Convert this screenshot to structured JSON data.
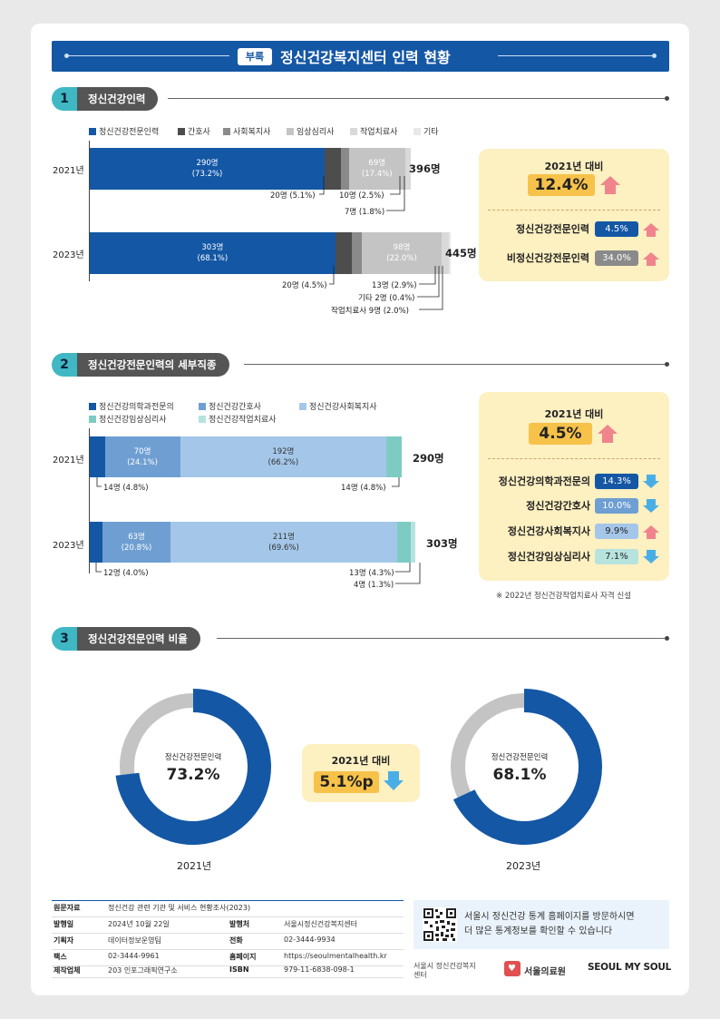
{
  "header": {
    "badge": "부록",
    "title": "정신건강복지센터 인력 현황"
  },
  "sections": [
    {
      "num": "1",
      "title": "정신건강인력"
    },
    {
      "num": "2",
      "title": "정신건강전문인력의 세부직종"
    },
    {
      "num": "3",
      "title": "정신건강전문인력 비율"
    }
  ],
  "colors": {
    "blue": "#1457a5",
    "dark_gray": "#4d4d4d",
    "gray": "#8a8a8a",
    "light_gray": "#c4c4c4",
    "lighter_gray": "#d9d9d9",
    "lightest_gray": "#e8e8e8",
    "mid_blue": "#6f9fd2",
    "light_blue": "#a4c7e9",
    "teal": "#7ecbc4",
    "light_teal": "#b7e3de",
    "up_arrow": "#f0848c",
    "down_arrow": "#4aaee6",
    "panel_bg": "#fdf0c1",
    "highlight": "#f7c24a"
  },
  "chart_data": [
    {
      "type": "bar",
      "orientation": "horizontal",
      "stacked": true,
      "categories": [
        "2021년",
        "2023년"
      ],
      "legend": [
        "정신건강전문인력",
        "간호사",
        "사회복지사",
        "임상심리사",
        "작업치료사",
        "기타"
      ],
      "series": [
        {
          "name": "정신건강전문인력",
          "values": [
            290,
            303
          ]
        },
        {
          "name": "간호사",
          "values": [
            20,
            20
          ]
        },
        {
          "name": "사회복지사",
          "values": [
            10,
            13
          ]
        },
        {
          "name": "임상심리사",
          "values": [
            69,
            98
          ]
        },
        {
          "name": "작업치료사",
          "values": [
            7,
            9
          ]
        },
        {
          "name": "기타",
          "values": [
            0,
            2
          ]
        }
      ],
      "totals": [
        "396명",
        "445명"
      ],
      "bar_labels": [
        {
          "main": "290명",
          "pct": "(73.2%)"
        },
        {
          "main": "69명",
          "pct": "(17.4%)"
        },
        {
          "main": "303명",
          "pct": "(68.1%)"
        },
        {
          "main": "98명",
          "pct": "(22.0%)"
        }
      ],
      "annotations": [
        "20명 (5.1%)",
        "10명 (2.5%)",
        "7명 (1.8%)",
        "20명 (4.5%)",
        "13명 (2.9%)",
        "기타 2명 (0.4%)",
        "작업치료사 9명 (2.0%)"
      ]
    },
    {
      "type": "bar",
      "orientation": "horizontal",
      "stacked": true,
      "categories": [
        "2021년",
        "2023년"
      ],
      "legend": [
        "정신건강의학과전문의",
        "정신건강간호사",
        "정신건강사회복지사",
        "정신건강임상심리사",
        "정신건강작업치료사"
      ],
      "series": [
        {
          "name": "정신건강의학과전문의",
          "values": [
            14,
            12
          ]
        },
        {
          "name": "정신건강간호사",
          "values": [
            70,
            63
          ]
        },
        {
          "name": "정신건강사회복지사",
          "values": [
            192,
            211
          ]
        },
        {
          "name": "정신건강임상심리사",
          "values": [
            14,
            13
          ]
        },
        {
          "name": "정신건강작업치료사",
          "values": [
            0,
            4
          ]
        }
      ],
      "totals": [
        "290명",
        "303명"
      ],
      "bar_labels": [
        {
          "main": "70명",
          "pct": "(24.1%)"
        },
        {
          "main": "192명",
          "pct": "(66.2%)"
        },
        {
          "main": "63명",
          "pct": "(20.8%)"
        },
        {
          "main": "211명",
          "pct": "(69.6%)"
        }
      ],
      "annotations": [
        "14명 (4.8%)",
        "14명 (4.8%)",
        "12명 (4.0%)",
        "13명 (4.3%)",
        "4명 (1.3%)"
      ]
    },
    {
      "type": "pie",
      "donut": true,
      "items": [
        {
          "year": "2021년",
          "label": "정신건강전문인력",
          "value": 73.2,
          "display": "73.2%"
        },
        {
          "year": "2023년",
          "label": "정신건강전문인력",
          "value": 68.1,
          "display": "68.1%"
        }
      ]
    }
  ],
  "panel1": {
    "head": "2021년 대비",
    "main": "12.4%",
    "main_dir": "up",
    "rows": [
      {
        "label": "정신건강전문인력",
        "value": "4.5%",
        "dir": "up"
      },
      {
        "label": "비정신건강전문인력",
        "value": "34.0%",
        "dir": "up"
      }
    ]
  },
  "panel2": {
    "head": "2021년 대비",
    "main": "4.5%",
    "main_dir": "up",
    "rows": [
      {
        "label": "정신건강의학과전문의",
        "value": "14.3%",
        "dir": "down"
      },
      {
        "label": "정신건강간호사",
        "value": "10.0%",
        "dir": "down"
      },
      {
        "label": "정신건강사회복지사",
        "value": "9.9%",
        "dir": "up"
      },
      {
        "label": "정신건강임상심리사",
        "value": "7.1%",
        "dir": "down"
      }
    ],
    "note": "※ 2022년 정신건강작업치료사 자격 신설"
  },
  "panel3": {
    "head": "2021년 대비",
    "main": "5.1%p",
    "main_dir": "down"
  },
  "info": {
    "rows": [
      {
        "k1": "원문자료",
        "v1": "정신건강 관련 기관 및 서비스 현황조사(2023)",
        "k2": "",
        "v2": ""
      },
      {
        "k1": "발행일",
        "v1": "2024년 10월 22일",
        "k2": "발행처",
        "v2": "서울시정신건강복지센터"
      },
      {
        "k1": "기획자",
        "v1": "데이터정보운영팀",
        "k2": "전화",
        "v2": "02-3444-9934"
      },
      {
        "k1": "팩스",
        "v1": "02-3444-9961",
        "k2": "홈페이지",
        "v2": "https://seoulmentalhealth.kr"
      },
      {
        "k1": "제작업체",
        "v1": "203 인포그래픽연구소",
        "k2": "ISBN",
        "v2": "979-11-6838-098-1"
      }
    ]
  },
  "qr": {
    "line1": "서울시 정신건강 통계 홈페이지를 방문하시면",
    "line2": "더 많은 통계정보를 확인할 수 있습니다"
  },
  "logos": {
    "center": "서울시 정신건강복지센터",
    "hospital": "서울의료원",
    "slogan": "SEOUL MY SOUL"
  }
}
